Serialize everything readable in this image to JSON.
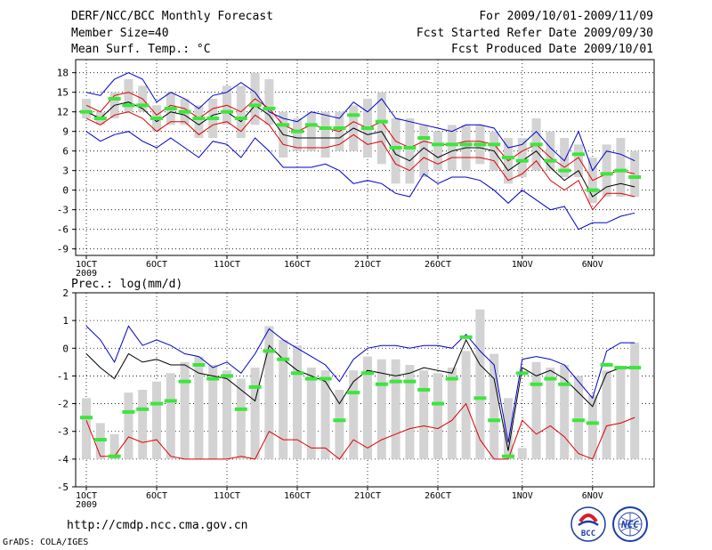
{
  "header": {
    "title": "DERF/NCC/BCC Monthly Forecast",
    "member_size": "Member Size=40",
    "variable": "Mean Surf. Temp.: °C",
    "period": "For 2009/10/01-2009/11/09",
    "started": "Fcst Started Refer Date 2009/09/30",
    "produced": "Fcst Produced Date 2009/10/01"
  },
  "footer": {
    "url": "http://cmdp.ncc.cma.gov.cn",
    "credit": "GrADS: COLA/IGES",
    "logo_left": "BCC",
    "logo_right": "NCC"
  },
  "colors": {
    "bar": "#d3d3d3",
    "green": "#3ce63c",
    "blue": "#0000cc",
    "red": "#e00000",
    "black": "#000000",
    "grid": "#000000"
  },
  "chart_data": [
    {
      "type": "line",
      "title": "Mean Surf. Temp.: °C",
      "x": [
        1,
        2,
        3,
        4,
        5,
        6,
        7,
        8,
        9,
        10,
        11,
        12,
        13,
        14,
        15,
        16,
        17,
        18,
        19,
        20,
        21,
        22,
        23,
        24,
        25,
        26,
        27,
        28,
        29,
        30,
        31,
        32,
        33,
        34,
        35,
        36,
        37,
        38,
        39,
        40
      ],
      "xtick_labels": [
        {
          "day": 1,
          "label": "1OCT",
          "sub": "2009"
        },
        {
          "day": 6,
          "label": "6OCT"
        },
        {
          "day": 11,
          "label": "11OCT"
        },
        {
          "day": 16,
          "label": "16OCT"
        },
        {
          "day": 21,
          "label": "21OCT"
        },
        {
          "day": 26,
          "label": "26OCT"
        },
        {
          "day": 32,
          "label": "1NOV"
        },
        {
          "day": 37,
          "label": "6NOV"
        }
      ],
      "ylim": [
        -10,
        20
      ],
      "yticks": [
        -9,
        -6,
        -3,
        0,
        3,
        6,
        9,
        12,
        15,
        18
      ],
      "bars_low": [
        11,
        10,
        11,
        12,
        12,
        9,
        10,
        10,
        8,
        8,
        10,
        8,
        10,
        10,
        5,
        6,
        6,
        5,
        6,
        6,
        5,
        4,
        1,
        1,
        2,
        3,
        3,
        3,
        4,
        3,
        1,
        2,
        3,
        3,
        2,
        2,
        -2,
        -1,
        -1,
        -1
      ],
      "bars_high": [
        14,
        12,
        15,
        17,
        16,
        13,
        15,
        14,
        13,
        14,
        16,
        16,
        18,
        17,
        12,
        11,
        12,
        12,
        12,
        13,
        14,
        15,
        11,
        11,
        10,
        9,
        10,
        10,
        10,
        9,
        8,
        8,
        11,
        9,
        8,
        7,
        5,
        7,
        8,
        6
      ],
      "obs": [
        12,
        11,
        14,
        13,
        13,
        11,
        12.5,
        12,
        11,
        11,
        12,
        11,
        13,
        12.5,
        10,
        9,
        10,
        9.5,
        9.5,
        11.5,
        9.5,
        10.5,
        6.5,
        6.5,
        8,
        7,
        7,
        7,
        7,
        7,
        5,
        4.5,
        7,
        4.5,
        3,
        5.5,
        0,
        2.5,
        3,
        2
      ],
      "series": [
        {
          "name": "ensemble max",
          "color": "#0000cc",
          "values": [
            15,
            14.5,
            17,
            18,
            17,
            13.5,
            15,
            14,
            12.5,
            14.5,
            15,
            16.5,
            15,
            12,
            11,
            10.5,
            12,
            11.5,
            11,
            13.5,
            12,
            14,
            11,
            10.5,
            10,
            9.5,
            9,
            10,
            10,
            9.5,
            6.5,
            7,
            9,
            6.5,
            4.5,
            9,
            3,
            6,
            5.5,
            4.5
          ]
        },
        {
          "name": "ensemble mean plus sd",
          "color": "#e00000",
          "values": [
            13,
            12,
            14.5,
            15,
            14,
            11.5,
            13,
            12.5,
            11,
            12.5,
            13,
            12,
            14,
            12.5,
            10,
            9,
            10,
            9.5,
            9,
            10.5,
            9.5,
            10.5,
            7.5,
            6.5,
            7.5,
            7,
            7,
            7.5,
            7.5,
            7,
            4.5,
            6,
            7,
            5,
            3.5,
            5,
            1.5,
            2.5,
            3,
            2.5
          ]
        },
        {
          "name": "ensemble mean",
          "color": "#000000",
          "values": [
            12,
            11,
            13,
            13.5,
            12.5,
            10.5,
            12,
            11.5,
            10,
            11.5,
            12,
            10.5,
            13,
            11.5,
            8.5,
            8,
            8,
            8,
            8,
            9.5,
            8.5,
            9,
            5.5,
            4.5,
            6.5,
            5,
            6,
            6.5,
            6.5,
            6,
            3,
            4.5,
            6,
            3.5,
            1.5,
            3,
            -1,
            0.5,
            1,
            0.5
          ]
        },
        {
          "name": "ensemble mean minus sd",
          "color": "#e00000",
          "values": [
            11,
            10,
            11.5,
            12,
            11,
            9,
            10.5,
            10.5,
            8.5,
            10,
            10.5,
            9,
            11.5,
            10,
            7,
            6.5,
            6.5,
            6.5,
            7,
            8.5,
            7,
            7.5,
            4,
            3,
            5,
            4,
            5,
            5,
            5,
            4.5,
            1.5,
            2.5,
            4.5,
            1.5,
            0,
            1.5,
            -3,
            -0.5,
            -0.5,
            -1
          ]
        },
        {
          "name": "ensemble min",
          "color": "#0000cc",
          "values": [
            9,
            7.5,
            8.5,
            9,
            7.5,
            6.5,
            8,
            6.5,
            5,
            7.5,
            7,
            5,
            8,
            6,
            3.5,
            3.5,
            3.5,
            4,
            3,
            1,
            1.5,
            1,
            -0.5,
            -1,
            2.5,
            1,
            2,
            2,
            1.5,
            0,
            -2,
            0,
            -1.5,
            -3,
            -2.5,
            -6,
            -5,
            -5,
            -4,
            -3.5
          ]
        }
      ]
    },
    {
      "type": "line",
      "title": "Prec.: log(mm/d)",
      "x": [
        1,
        2,
        3,
        4,
        5,
        6,
        7,
        8,
        9,
        10,
        11,
        12,
        13,
        14,
        15,
        16,
        17,
        18,
        19,
        20,
        21,
        22,
        23,
        24,
        25,
        26,
        27,
        28,
        29,
        30,
        31,
        32,
        33,
        34,
        35,
        36,
        37,
        38,
        39,
        40
      ],
      "xtick_labels": [
        {
          "day": 1,
          "label": "1OCT",
          "sub": "2009"
        },
        {
          "day": 6,
          "label": "6OCT"
        },
        {
          "day": 11,
          "label": "11OCT"
        },
        {
          "day": 16,
          "label": "16OCT"
        },
        {
          "day": 21,
          "label": "21OCT"
        },
        {
          "day": 26,
          "label": "26OCT"
        },
        {
          "day": 32,
          "label": "1NOV"
        },
        {
          "day": 37,
          "label": "6NOV"
        }
      ],
      "ylim": [
        -5,
        2
      ],
      "yticks": [
        -5,
        -4,
        -3,
        -2,
        -1,
        0,
        1,
        2
      ],
      "bars_low": [
        -4,
        -4,
        -4,
        -4,
        -4,
        -4,
        -4,
        -4,
        -4,
        -4,
        -4,
        -4,
        -4,
        -4,
        -4,
        -4,
        -4,
        -4,
        -4,
        -4,
        -4,
        -4,
        -4,
        -4,
        -4,
        -4,
        -4,
        -4,
        -4,
        -4,
        -4,
        -4,
        -4,
        -4,
        -4,
        -4,
        -4,
        -4,
        -4,
        -4
      ],
      "bars_high": [
        -1.8,
        -2.7,
        -3.1,
        -1.6,
        -1.5,
        -1.2,
        -0.9,
        -0.5,
        -0.3,
        -0.6,
        -0.8,
        -1.1,
        -0.7,
        0.8,
        0.3,
        0.1,
        -0.7,
        -0.8,
        -1.5,
        -0.8,
        -0.3,
        -0.4,
        -0.4,
        -0.6,
        -0.8,
        -0.9,
        -0.7,
        -0.1,
        1.4,
        -0.2,
        -1.8,
        -3.6,
        -0.5,
        -0.7,
        -0.6,
        -1,
        -1.7,
        -0.8,
        -0.7,
        0.2
      ],
      "obs": [
        -2.5,
        -3.3,
        -3.9,
        -2.3,
        -2.2,
        -2,
        -1.9,
        -1.2,
        -0.6,
        -1.1,
        -1,
        -2.2,
        -1.4,
        -0.1,
        -0.4,
        -0.9,
        -1.1,
        -1.1,
        -2.6,
        -1.6,
        -0.9,
        -1.3,
        -1.2,
        -1.2,
        -1.5,
        -2,
        -1.1,
        0.4,
        -1.8,
        -2.6,
        -3.9,
        -0.9,
        -1.3,
        -1.1,
        -1.3,
        -2.6,
        -2.7,
        -0.6,
        -0.7,
        -0.7
      ],
      "series": [
        {
          "name": "ensemble max",
          "color": "#0000cc",
          "values": [
            0.8,
            0.3,
            -0.5,
            0.8,
            0.1,
            0.3,
            0.1,
            -0.2,
            -0.3,
            -0.7,
            -0.5,
            -0.9,
            -0.2,
            0.7,
            0.3,
            0,
            -0.3,
            -0.6,
            -1.2,
            -0.4,
            0,
            0.1,
            0.1,
            0,
            0.1,
            0.1,
            0,
            0.5,
            -0.1,
            -0.6,
            -3.4,
            -0.4,
            -0.3,
            -0.4,
            -0.6,
            -1.2,
            -1.8,
            -0.1,
            0.2,
            0.2
          ]
        },
        {
          "name": "ensemble mean",
          "color": "#000000",
          "values": [
            -0.2,
            -0.7,
            -1.1,
            -0.2,
            -0.5,
            -0.4,
            -0.6,
            -0.6,
            -0.9,
            -1,
            -1.1,
            -1.5,
            -1.9,
            0.1,
            -0.4,
            -0.8,
            -1,
            -1.2,
            -2,
            -1.2,
            -0.8,
            -0.9,
            -1,
            -0.9,
            -0.7,
            -0.8,
            -0.9,
            0.3,
            -0.6,
            -1.1,
            -3.7,
            -0.7,
            -1,
            -0.8,
            -1.1,
            -1.6,
            -2.1,
            -0.9,
            -0.7,
            -0.7
          ]
        },
        {
          "name": "ensemble min",
          "color": "#e00000",
          "values": [
            -2.6,
            -3.9,
            -3.9,
            -3.2,
            -3.4,
            -3.3,
            -3.9,
            -4,
            -4,
            -4,
            -4,
            -3.9,
            -4,
            -3,
            -3.3,
            -3.3,
            -3.6,
            -3.6,
            -4,
            -3.3,
            -3.6,
            -3.3,
            -3.1,
            -2.9,
            -2.8,
            -2.9,
            -2.6,
            -2,
            -3.3,
            -4,
            -4,
            -2.6,
            -3.1,
            -2.8,
            -3.2,
            -3.8,
            -4,
            -2.8,
            -2.7,
            -2.5
          ]
        }
      ]
    }
  ]
}
